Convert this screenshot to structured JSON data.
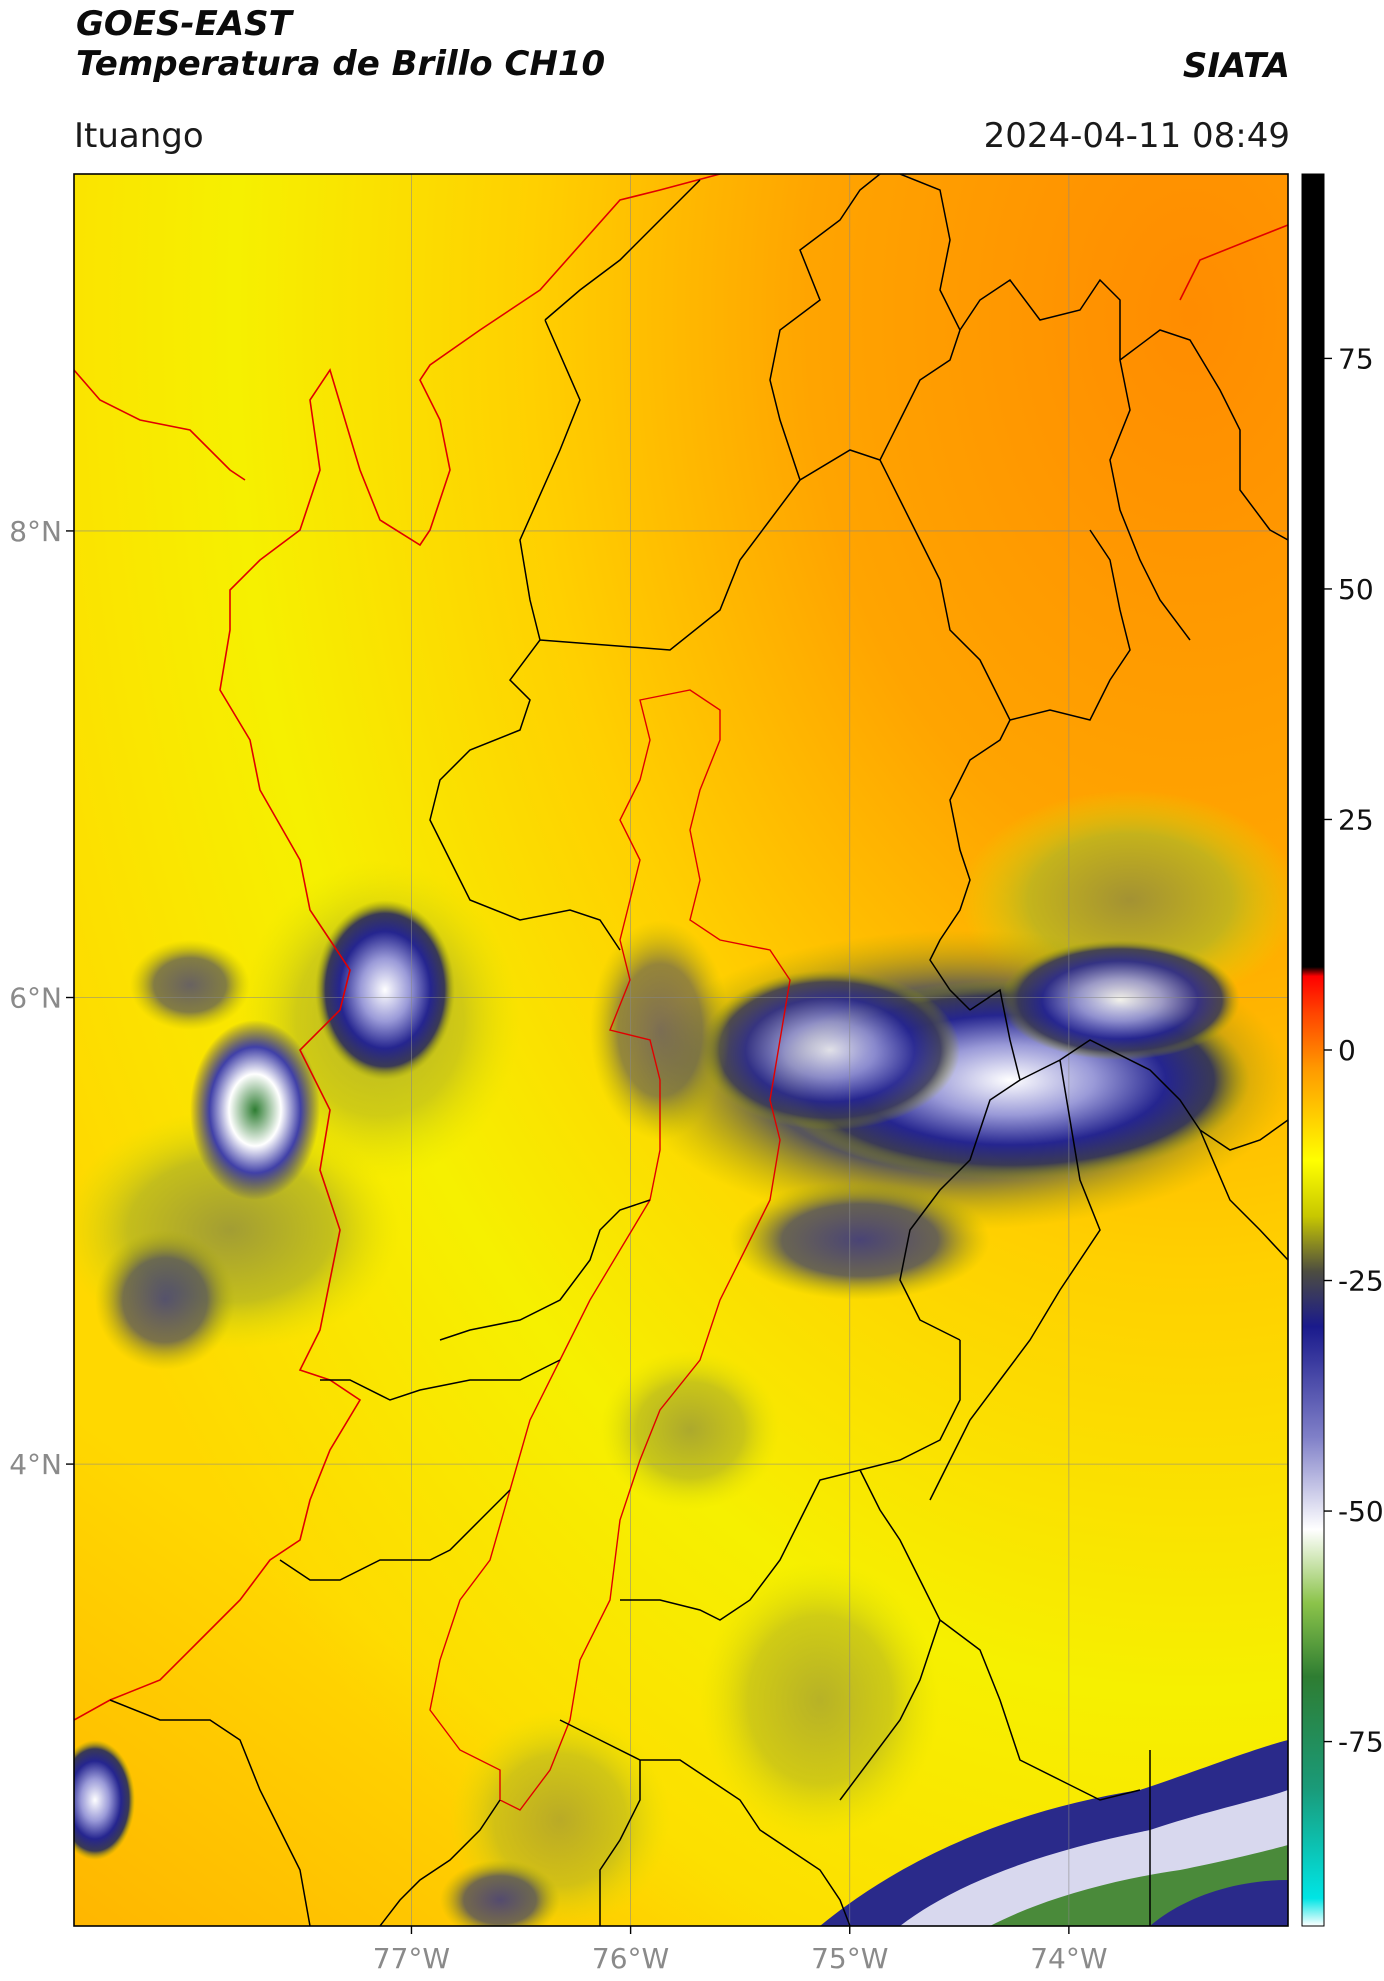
{
  "header": {
    "satellite": "GOES-EAST",
    "product": "Temperatura de Brillo CH10",
    "brand": "SIATA",
    "location": "Ituango",
    "timestamp": "2024-04-11 08:49"
  },
  "map": {
    "lat_ticks": [
      {
        "label": "8°N",
        "lat": 8
      },
      {
        "label": "6°N",
        "lat": 6
      },
      {
        "label": "4°N",
        "lat": 4
      }
    ],
    "lon_ticks": [
      {
        "label": "77°W",
        "lon": -77
      },
      {
        "label": "76°W",
        "lon": -76
      },
      {
        "label": "75°W",
        "lon": -75
      },
      {
        "label": "74°W",
        "lon": -74
      }
    ],
    "extent": {
      "lon_min": -78.54,
      "lon_max": -73.0,
      "lat_min": 2.02,
      "lat_max": 9.53
    }
  },
  "colorbar": {
    "ticks": [
      "75",
      "50",
      "25",
      "0",
      "-25",
      "-50",
      "-75"
    ],
    "values": [
      75,
      50,
      25,
      0,
      -25,
      -50,
      -75
    ],
    "range": [
      -95,
      95
    ],
    "stops": [
      {
        "v": -95,
        "color": "#ffffff"
      },
      {
        "v": -92,
        "color": "#00e5e5"
      },
      {
        "v": -80,
        "color": "#1a9a78"
      },
      {
        "v": -68,
        "color": "#2e7d32"
      },
      {
        "v": -60,
        "color": "#8bc34a"
      },
      {
        "v": -52,
        "color": "#ffffff"
      },
      {
        "v": -42,
        "color": "#8080c8"
      },
      {
        "v": -30,
        "color": "#1a1a8c"
      },
      {
        "v": -24,
        "color": "#4d4d40"
      },
      {
        "v": -18,
        "color": "#c8c800"
      },
      {
        "v": -12,
        "color": "#ffff00"
      },
      {
        "v": -2,
        "color": "#ff9900"
      },
      {
        "v": 4,
        "color": "#ff4400"
      },
      {
        "v": 8,
        "color": "#ff0000"
      },
      {
        "v": 9,
        "color": "#000000"
      },
      {
        "v": 95,
        "color": "#000000"
      }
    ]
  }
}
